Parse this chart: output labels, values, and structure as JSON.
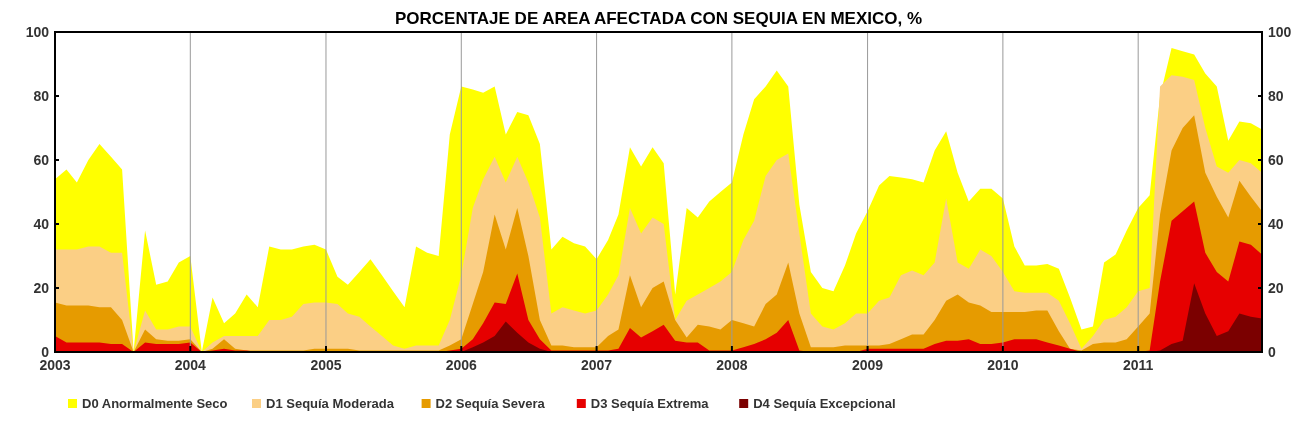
{
  "chart_data": {
    "type": "area",
    "title": "PORCENTAJE DE AREA AFECTADA CON SEQUIA EN MEXICO, %",
    "x": [
      "2003-01",
      "2003-02",
      "2003-03",
      "2003-04",
      "2003-05",
      "2003-06",
      "2003-07",
      "2003-08",
      "2003-09",
      "2003-10",
      "2003-11",
      "2003-12",
      "2004-01",
      "2004-02",
      "2004-03",
      "2004-04",
      "2004-05",
      "2004-06",
      "2004-07",
      "2004-08",
      "2004-09",
      "2004-10",
      "2004-11",
      "2004-12",
      "2005-01",
      "2005-02",
      "2005-03",
      "2005-04",
      "2005-05",
      "2005-06",
      "2005-07",
      "2005-08",
      "2005-09",
      "2005-10",
      "2005-11",
      "2005-12",
      "2006-01",
      "2006-02",
      "2006-03",
      "2006-04",
      "2006-05",
      "2006-06",
      "2006-07",
      "2006-08",
      "2006-09",
      "2006-10",
      "2006-11",
      "2006-12",
      "2007-01",
      "2007-02",
      "2007-03",
      "2007-04",
      "2007-05",
      "2007-06",
      "2007-07",
      "2007-08",
      "2007-09",
      "2007-10",
      "2007-11",
      "2007-12",
      "2008-01",
      "2008-02",
      "2008-03",
      "2008-04",
      "2008-05",
      "2008-06",
      "2008-07",
      "2008-08",
      "2008-09",
      "2008-10",
      "2008-11",
      "2008-12",
      "2009-01",
      "2009-02",
      "2009-03",
      "2009-04",
      "2009-05",
      "2009-06",
      "2009-07",
      "2009-08",
      "2009-09",
      "2009-10",
      "2009-11",
      "2009-12",
      "2010-01",
      "2010-02",
      "2010-03",
      "2010-04",
      "2010-05",
      "2010-06",
      "2010-07",
      "2010-08",
      "2010-09",
      "2010-10",
      "2010-11",
      "2010-12",
      "2011-01",
      "2011-02",
      "2011-03",
      "2011-04",
      "2011-05",
      "2011-06",
      "2011-07",
      "2011-08",
      "2011-09",
      "2011-10",
      "2011-11",
      "2011-12"
    ],
    "series": [
      {
        "name": "D0 Anormalmente Seco",
        "color": "#ffff00",
        "values": [
          54,
          57,
          53,
          60,
          65,
          61,
          57,
          0,
          38,
          21,
          22,
          28,
          30,
          0,
          17,
          9,
          12,
          18,
          14,
          33,
          32,
          32,
          33,
          33.5,
          32,
          23.5,
          21,
          25,
          29,
          24,
          19,
          14,
          33,
          31,
          30,
          68,
          83,
          82,
          81,
          83,
          68,
          75,
          74,
          65,
          32,
          36,
          34,
          33,
          29,
          35,
          43,
          64,
          58,
          64,
          59,
          18,
          45,
          42,
          47,
          50,
          53,
          68,
          79,
          83,
          88,
          83,
          46,
          25,
          20,
          19,
          27,
          37,
          44,
          52,
          55,
          54.5,
          54,
          53,
          63,
          69,
          56,
          47,
          51,
          51,
          48,
          33,
          27,
          27,
          27.5,
          26,
          17,
          7,
          8,
          28,
          30.5,
          38,
          45,
          49,
          80,
          95,
          94,
          93,
          87,
          83,
          66,
          72,
          71.5,
          69.5
        ]
      },
      {
        "name": "D1 Sequía Moderada",
        "color": "#fbcf85",
        "values": [
          32,
          32,
          32,
          33,
          33,
          31,
          31,
          0,
          13,
          7,
          7,
          8,
          8,
          0,
          3,
          5,
          5,
          5,
          5,
          10,
          10,
          11,
          15,
          15.5,
          15.5,
          15,
          12,
          11,
          8,
          5,
          2,
          1,
          2,
          2,
          2,
          10,
          24,
          45,
          54,
          61,
          53,
          61,
          53,
          42,
          12,
          14,
          13,
          12,
          13,
          18,
          24,
          45,
          37,
          42,
          40,
          10,
          16,
          18,
          20,
          22,
          25,
          35,
          41,
          55,
          60,
          62,
          37,
          12,
          8,
          7,
          9,
          12,
          12,
          16,
          17,
          24,
          25.5,
          24,
          28,
          48,
          28,
          26,
          32,
          30,
          25,
          19,
          18.5,
          18.5,
          18.5,
          16,
          9,
          1,
          5,
          10,
          11,
          14,
          19,
          20,
          83,
          86.5,
          86,
          85,
          70,
          58,
          56,
          60,
          59,
          56
        ]
      },
      {
        "name": "D2 Sequía Severa",
        "color": "#e69b00",
        "values": [
          15.5,
          14.5,
          14.5,
          14.5,
          14,
          14,
          10,
          0,
          7,
          4,
          3.5,
          3.5,
          4,
          0,
          1,
          4,
          1,
          0.5,
          0.5,
          0.5,
          0.5,
          0.5,
          0.5,
          1,
          1,
          1,
          1,
          0.5,
          0.5,
          0.5,
          0.5,
          0.5,
          0.5,
          0.5,
          0.5,
          2,
          4,
          15,
          25,
          43,
          32,
          45,
          30,
          10,
          2,
          2,
          1.5,
          1.5,
          1.5,
          5,
          7,
          24,
          14,
          20,
          22,
          10,
          4.5,
          8.5,
          8,
          7,
          10,
          9,
          8,
          15,
          18,
          28,
          12,
          1.5,
          1.5,
          1.5,
          2,
          2,
          2,
          2,
          2.5,
          4,
          5.5,
          5.5,
          10,
          16,
          18,
          15.5,
          14.5,
          12.5,
          12.5,
          12.5,
          12.5,
          13,
          13,
          6.5,
          1,
          0.5,
          2.5,
          3,
          3,
          4,
          8,
          12,
          43,
          63,
          70,
          74,
          56,
          48.5,
          42,
          53.5,
          48.5,
          44
        ]
      },
      {
        "name": "D3 Sequía Extrema",
        "color": "#e60000",
        "values": [
          5,
          3,
          3,
          3,
          3,
          2.5,
          2.5,
          0,
          3,
          2.5,
          2.5,
          2.5,
          3,
          0,
          0.5,
          1,
          0.5,
          0.5,
          0,
          0,
          0,
          0,
          0,
          0,
          0,
          0,
          0,
          0,
          0,
          0,
          0,
          0,
          0,
          0,
          0,
          0.5,
          1,
          4,
          9,
          15.5,
          15,
          24.5,
          10,
          4,
          0.5,
          0.5,
          0.5,
          0.5,
          0.5,
          0.5,
          1,
          7.5,
          4.5,
          6.5,
          8.5,
          3.5,
          3,
          3,
          0.5,
          0.5,
          0.5,
          1.5,
          2.5,
          4,
          6,
          10,
          0.5,
          0,
          0,
          0,
          0,
          0,
          1,
          1,
          1,
          1,
          1,
          1,
          2.5,
          3.5,
          3.5,
          4,
          2.5,
          2.5,
          3,
          4,
          4,
          4,
          3,
          2,
          1,
          0,
          0,
          0,
          0,
          0,
          0,
          0.5,
          22,
          41,
          44,
          47,
          31,
          25,
          22,
          34.5,
          33.5,
          30.5
        ]
      },
      {
        "name": "D4 Sequía Excepcional",
        "color": "#7b0000",
        "values": [
          0,
          0,
          0,
          0,
          0,
          0,
          0,
          0,
          0,
          0,
          0,
          0,
          0,
          0,
          0,
          0,
          0,
          0,
          0,
          0,
          0,
          0,
          0,
          0,
          0,
          0,
          0,
          0,
          0,
          0,
          0,
          0,
          0,
          0,
          0,
          0,
          0,
          1.5,
          3,
          5,
          9.5,
          6,
          3,
          1,
          0,
          0,
          0,
          0,
          0,
          0,
          0,
          0,
          0,
          0,
          0,
          0,
          0,
          0,
          0,
          0,
          0,
          0,
          0,
          0,
          0,
          0,
          0,
          0,
          0,
          0,
          0,
          0,
          0,
          0,
          0,
          0,
          0,
          0,
          0,
          0,
          0,
          0,
          0,
          0,
          0,
          0,
          0,
          0,
          0,
          0,
          0,
          0,
          0,
          0,
          0,
          0,
          0,
          0,
          0.5,
          2.5,
          3.5,
          21.5,
          12,
          5,
          6.5,
          12,
          11,
          10.5
        ]
      }
    ],
    "xlim": [
      "2003-01",
      "2011-12"
    ],
    "xticks": [
      "2003",
      "2004",
      "2005",
      "2006",
      "2007",
      "2008",
      "2009",
      "2010",
      "2011"
    ],
    "ylim": [
      0,
      100
    ],
    "yticks": [
      0,
      20,
      40,
      60,
      80,
      100
    ],
    "y2lim": [
      0,
      100
    ],
    "y2ticks": [
      0,
      20,
      40,
      60,
      80,
      100
    ],
    "grid": "x",
    "legend": "bottom"
  }
}
